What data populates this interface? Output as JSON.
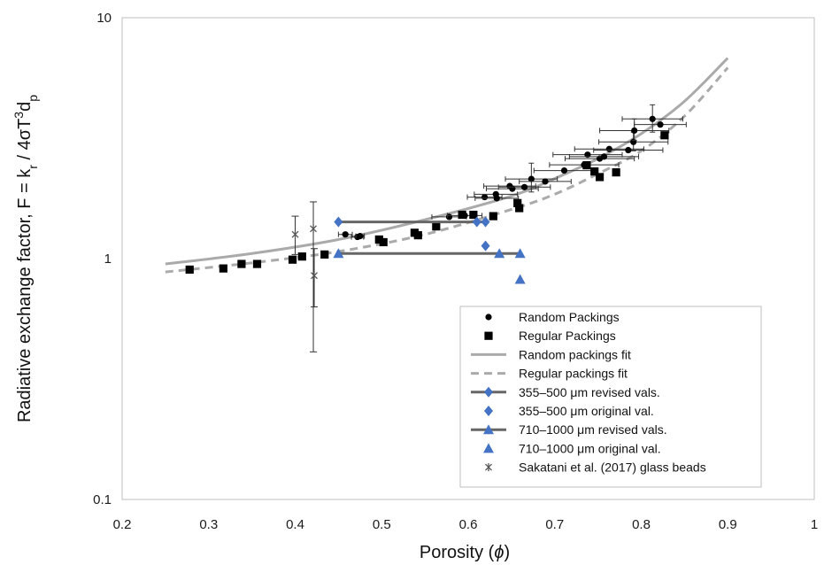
{
  "chart_data": {
    "type": "scatter",
    "xlabel": "Porosity (",
    "xlabel_symbol": "ϕ",
    "xlabel_end": ")",
    "ylabel": "Radiative exchange factor, F = k",
    "ylabel_sub_r": "r",
    "ylabel_mid": " / 4σT",
    "ylabel_sup": "3",
    "ylabel_d": "d",
    "ylabel_sub_p": "p",
    "xlim": [
      0.2,
      1.0
    ],
    "ylim": [
      0.1,
      10
    ],
    "yscale": "log",
    "x_ticks": [
      "0.2",
      "0.3",
      "0.4",
      "0.5",
      "0.6",
      "0.7",
      "0.8",
      "0.9",
      "1"
    ],
    "y_ticks": [
      "0.1",
      "1",
      "10"
    ],
    "grid": false,
    "legend_position": "bottom-right",
    "colors": {
      "points": "#000000",
      "fit_random": "#aaaaaa",
      "fit_regular": "#aaaaaa",
      "blue": "#4472c4",
      "revised_line": "#666666",
      "sakatani": "#555555"
    },
    "series": [
      {
        "name": "Random Packings",
        "marker": "circle",
        "points": [
          {
            "x": 0.458,
            "y": 1.26,
            "xerr": 0.008
          },
          {
            "x": 0.472,
            "y": 1.23,
            "xerr": 0.007
          },
          {
            "x": 0.475,
            "y": 1.24,
            "xerr": 0.005
          },
          {
            "x": 0.578,
            "y": 1.49,
            "xerr": 0.02
          },
          {
            "x": 0.596,
            "y": 1.51,
            "xerr": 0.02
          },
          {
            "x": 0.619,
            "y": 1.8,
            "xerr": 0.02
          },
          {
            "x": 0.632,
            "y": 1.85,
            "xerr": 0.025
          },
          {
            "x": 0.633,
            "y": 1.78,
            "xerr": 0.025
          },
          {
            "x": 0.648,
            "y": 2.0,
            "xerr": 0.03
          },
          {
            "x": 0.651,
            "y": 1.95,
            "xerr": 0.03
          },
          {
            "x": 0.665,
            "y": 1.98,
            "xerr": 0.03
          },
          {
            "x": 0.673,
            "y": 2.14,
            "xerr": 0.03,
            "yerr": [
              0.25,
              0.35
            ]
          },
          {
            "x": 0.689,
            "y": 2.09,
            "xerr": 0.03
          },
          {
            "x": 0.711,
            "y": 2.32,
            "xerr": 0.035
          },
          {
            "x": 0.734,
            "y": 2.45,
            "xerr": 0.04
          },
          {
            "x": 0.738,
            "y": 2.7,
            "xerr": 0.04
          },
          {
            "x": 0.752,
            "y": 2.6,
            "xerr": 0.04
          },
          {
            "x": 0.757,
            "y": 2.65,
            "xerr": 0.04
          },
          {
            "x": 0.763,
            "y": 2.85,
            "xerr": 0.04
          },
          {
            "x": 0.785,
            "y": 2.82,
            "xerr": 0.04
          },
          {
            "x": 0.791,
            "y": 3.05,
            "xerr": 0.04,
            "yerr": [
              0.25,
              0.3
            ]
          },
          {
            "x": 0.792,
            "y": 3.4,
            "xerr": 0.04,
            "yerr": [
              0.3,
              0.4
            ]
          },
          {
            "x": 0.813,
            "y": 3.8,
            "xerr": 0.035,
            "yerr": [
              0.45,
              0.55
            ]
          },
          {
            "x": 0.822,
            "y": 3.6,
            "xerr": 0.03
          }
        ]
      },
      {
        "name": "Regular Packings",
        "marker": "square",
        "points": [
          {
            "x": 0.278,
            "y": 0.9
          },
          {
            "x": 0.317,
            "y": 0.91
          },
          {
            "x": 0.338,
            "y": 0.95
          },
          {
            "x": 0.356,
            "y": 0.95
          },
          {
            "x": 0.397,
            "y": 0.99
          },
          {
            "x": 0.408,
            "y": 1.02
          },
          {
            "x": 0.434,
            "y": 1.04
          },
          {
            "x": 0.497,
            "y": 1.2
          },
          {
            "x": 0.502,
            "y": 1.17
          },
          {
            "x": 0.538,
            "y": 1.28
          },
          {
            "x": 0.542,
            "y": 1.25
          },
          {
            "x": 0.563,
            "y": 1.36
          },
          {
            "x": 0.593,
            "y": 1.52
          },
          {
            "x": 0.606,
            "y": 1.52
          },
          {
            "x": 0.629,
            "y": 1.5
          },
          {
            "x": 0.657,
            "y": 1.7
          },
          {
            "x": 0.659,
            "y": 1.62
          },
          {
            "x": 0.737,
            "y": 2.44
          },
          {
            "x": 0.746,
            "y": 2.3
          },
          {
            "x": 0.752,
            "y": 2.18
          },
          {
            "x": 0.771,
            "y": 2.28
          },
          {
            "x": 0.827,
            "y": 3.25
          }
        ]
      },
      {
        "name": "Random packings fit",
        "style": "solid",
        "curve": {
          "x": [
            0.25,
            0.35,
            0.45,
            0.55,
            0.65,
            0.7,
            0.75,
            0.8,
            0.85,
            0.9
          ],
          "y": [
            0.95,
            1.05,
            1.2,
            1.45,
            1.82,
            2.15,
            2.6,
            3.3,
            4.5,
            6.8
          ]
        }
      },
      {
        "name": "Regular packings fit",
        "style": "dashed",
        "curve": {
          "x": [
            0.25,
            0.35,
            0.45,
            0.55,
            0.65,
            0.7,
            0.75,
            0.8,
            0.85,
            0.9
          ],
          "y": [
            0.88,
            0.96,
            1.07,
            1.26,
            1.6,
            1.85,
            2.25,
            2.8,
            3.9,
            6.2
          ]
        }
      },
      {
        "name": "355–500 μm revised vals.",
        "marker": "diamond",
        "line": true,
        "points": [
          {
            "x": 0.45,
            "y": 1.42
          },
          {
            "x": 0.61,
            "y": 1.42
          },
          {
            "x": 0.62,
            "y": 1.42
          }
        ]
      },
      {
        "name": "355–500 μm original val.",
        "marker": "diamond",
        "points": [
          {
            "x": 0.62,
            "y": 1.13
          }
        ]
      },
      {
        "name": "710–1000 μm revised vals.",
        "marker": "triangle",
        "line": true,
        "points": [
          {
            "x": 0.45,
            "y": 1.05
          },
          {
            "x": 0.636,
            "y": 1.05
          },
          {
            "x": 0.66,
            "y": 1.05
          }
        ]
      },
      {
        "name": "710–1000 μm original val.",
        "marker": "triangle",
        "points": [
          {
            "x": 0.66,
            "y": 0.82
          }
        ]
      },
      {
        "name": "Sakatani et al. (2017) glass beads",
        "marker": "x",
        "points": [
          {
            "x": 0.4,
            "y": 1.26,
            "ylo": 1.04,
            "yhi": 1.5
          },
          {
            "x": 0.421,
            "y": 1.33,
            "ylo": 0.41,
            "yhi": 1.72
          },
          {
            "x": 0.422,
            "y": 0.85,
            "ylo": 0.63,
            "yhi": 1.1
          }
        ]
      }
    ]
  }
}
